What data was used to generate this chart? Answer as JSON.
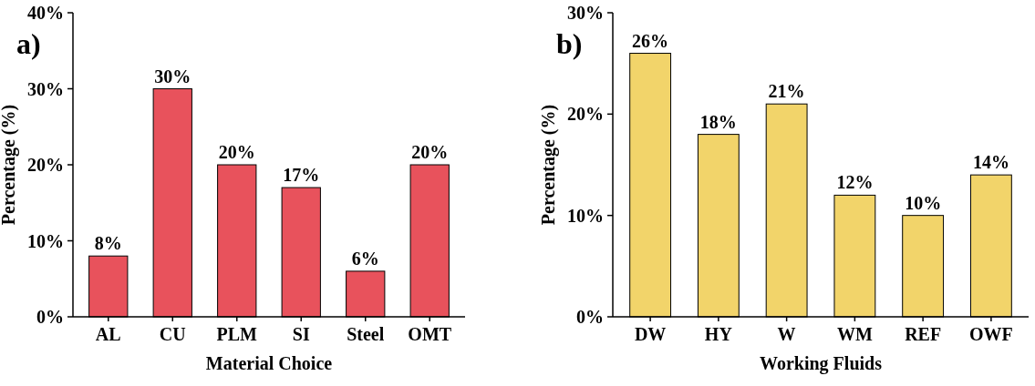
{
  "chart_data": [
    {
      "type": "bar",
      "title": "a)",
      "xlabel": "Material Choice",
      "ylabel": "Percentage (%)",
      "categories": [
        "AL",
        "CU",
        "PLM",
        "SI",
        "Steel",
        "OMT"
      ],
      "values": [
        8,
        30,
        20,
        17,
        6,
        20
      ],
      "value_labels": [
        "8%",
        "30%",
        "20%",
        "17%",
        "6%",
        "20%"
      ],
      "color": "#e8525c",
      "ylim": [
        0,
        40
      ],
      "yticks": [
        {
          "value": 0,
          "label": "0%"
        },
        {
          "value": 10,
          "label": "10%"
        },
        {
          "value": 20,
          "label": "20%"
        },
        {
          "value": 30,
          "label": "30%"
        },
        {
          "value": 40,
          "label": "40%"
        }
      ]
    },
    {
      "type": "bar",
      "title": "b)",
      "xlabel": "Working Fluids",
      "ylabel": "Percentage (%)",
      "categories": [
        "DW",
        "HY",
        "W",
        "WM",
        "REF",
        "OWF"
      ],
      "values": [
        26,
        18,
        21,
        12,
        10,
        14
      ],
      "value_labels": [
        "26%",
        "18%",
        "21%",
        "12%",
        "10%",
        "14%"
      ],
      "color": "#f2d46a",
      "ylim": [
        0,
        30
      ],
      "yticks": [
        {
          "value": 0,
          "label": "0%"
        },
        {
          "value": 10,
          "label": "10%"
        },
        {
          "value": 20,
          "label": "20%"
        },
        {
          "value": 30,
          "label": "30%"
        }
      ]
    }
  ]
}
